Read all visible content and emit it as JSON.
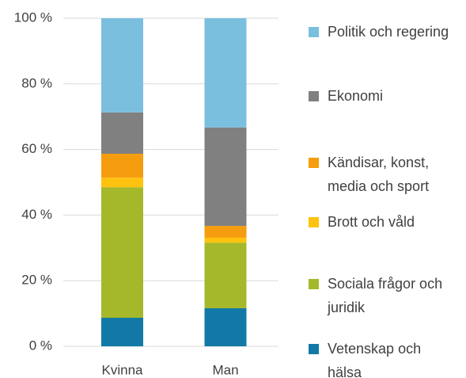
{
  "chart_data": {
    "type": "stacked_bar",
    "categories": [
      "Kvinna",
      "Man"
    ],
    "series": [
      {
        "name": "Vetenskap och hälsa",
        "color": "#1279a6",
        "values": [
          8.7,
          11.6
        ]
      },
      {
        "name": "Sociala frågor och juridik",
        "color": "#a5b82a",
        "values": [
          39.8,
          20.0
        ]
      },
      {
        "name": "Brott och våld",
        "color": "#ffc20e",
        "values": [
          2.9,
          1.5
        ]
      },
      {
        "name": "Kändisar, konst, media och sport",
        "color": "#f59d0e",
        "values": [
          7.3,
          3.6
        ]
      },
      {
        "name": "Ekonomi",
        "color": "#808080",
        "values": [
          12.6,
          30.0
        ]
      },
      {
        "name": "Politik och regering",
        "color": "#7bbfde",
        "values": [
          28.7,
          33.3
        ]
      }
    ],
    "ylim": [
      0,
      100
    ],
    "yticks": [
      {
        "value": 0,
        "label": "0 %"
      },
      {
        "value": 20,
        "label": "20 %"
      },
      {
        "value": 40,
        "label": "40 %"
      },
      {
        "value": 60,
        "label": "60 %"
      },
      {
        "value": 80,
        "label": "80 %"
      },
      {
        "value": 100,
        "label": "100 %"
      }
    ],
    "grid": true
  }
}
